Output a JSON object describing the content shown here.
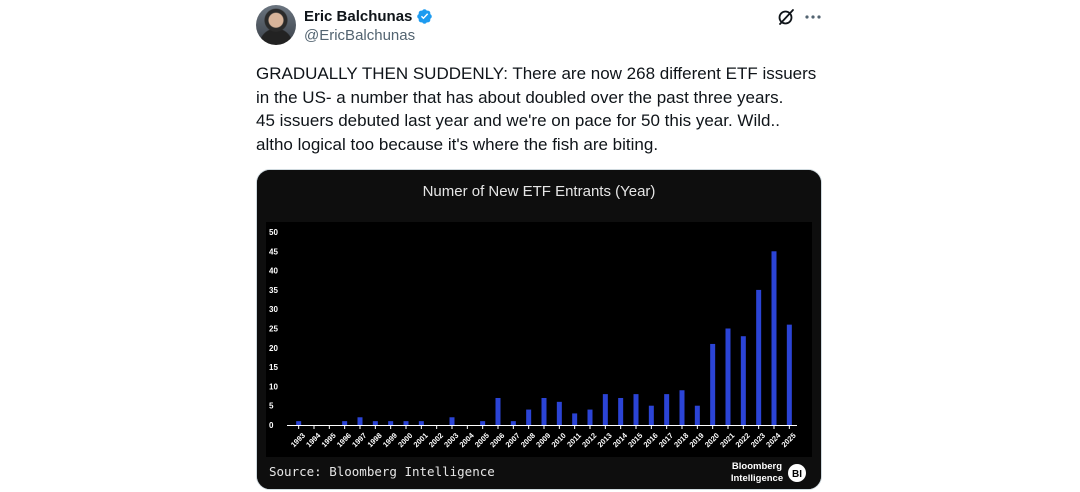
{
  "author": {
    "display_name": "Eric Balchunas",
    "handle": "@EricBalchunas",
    "verified_icon": "verified-badge-icon",
    "verified_color": "#1d9bf0"
  },
  "header_icons": {
    "grok": "grok-icon",
    "more": "more-icon"
  },
  "tweet": {
    "text_lines": [
      "GRADUALLY THEN SUDDENLY: There are now 268 different ETF issuers",
      "in the US- a number that has about doubled over the past three years.",
      "45 issuers debuted last year and we're on pace for 50 this year. Wild..",
      "altho logical too because it's where the fish are biting."
    ]
  },
  "chart_data": {
    "type": "bar",
    "title": "Numer of New ETF Entrants (Year)",
    "source": "Source: Bloomberg Intelligence",
    "logo_text": [
      "Bloomberg",
      "Intelligence"
    ],
    "logo_badge": "BI",
    "bar_color": "#2b44d6",
    "background": "#000000",
    "ylim": [
      0,
      50
    ],
    "yticks": [
      0,
      5,
      10,
      15,
      20,
      25,
      30,
      35,
      40,
      45,
      50
    ],
    "categories": [
      "1993",
      "1994",
      "1995",
      "1996",
      "1997",
      "1998",
      "1999",
      "2000",
      "2001",
      "2002",
      "2003",
      "2004",
      "2005",
      "2006",
      "2007",
      "2008",
      "2009",
      "2010",
      "2011",
      "2012",
      "2013",
      "2014",
      "2015",
      "2016",
      "2017",
      "2018",
      "2019",
      "2020",
      "2021",
      "2022",
      "2023",
      "2024",
      "2025"
    ],
    "values": [
      1,
      0,
      0,
      1,
      2,
      1,
      1,
      1,
      1,
      0,
      2,
      0,
      1,
      7,
      1,
      4,
      7,
      6,
      3,
      4,
      8,
      7,
      8,
      5,
      8,
      9,
      5,
      21,
      25,
      23,
      35,
      45,
      26
    ],
    "grid": false,
    "legend": "none"
  }
}
